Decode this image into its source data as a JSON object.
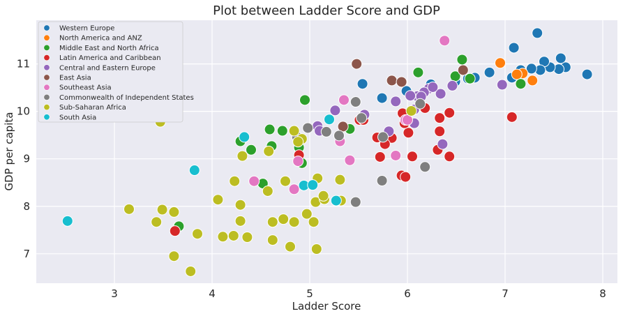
{
  "chart_data": {
    "type": "scatter",
    "title": "Plot between Ladder Score and GDP",
    "xlabel": "Ladder Score",
    "ylabel": "GDP per capita",
    "xlim": [
      2.2,
      8.15
    ],
    "ylim": [
      6.38,
      11.92
    ],
    "xticks": [
      3,
      4,
      5,
      6,
      7,
      8
    ],
    "yticks": [
      7,
      8,
      9,
      10,
      11
    ],
    "grid": true,
    "legend_position": "top-left",
    "series": [
      {
        "name": "Western Europe",
        "color": "#1f77b4",
        "points": [
          [
            7.84,
            10.78
          ],
          [
            7.62,
            10.93
          ],
          [
            7.57,
            11.12
          ],
          [
            7.55,
            10.89
          ],
          [
            7.46,
            10.93
          ],
          [
            7.4,
            11.05
          ],
          [
            7.36,
            10.87
          ],
          [
            7.33,
            11.65
          ],
          [
            7.27,
            10.9
          ],
          [
            7.16,
            10.87
          ],
          [
            7.09,
            11.34
          ],
          [
            7.07,
            10.71
          ],
          [
            6.84,
            10.82
          ],
          [
            6.69,
            10.71
          ],
          [
            6.62,
            10.69
          ],
          [
            6.49,
            10.63
          ],
          [
            6.24,
            10.57
          ],
          [
            5.99,
            10.43
          ],
          [
            5.74,
            10.28
          ],
          [
            5.54,
            10.58
          ]
        ]
      },
      {
        "name": "North America and ANZ",
        "color": "#ff7f0e",
        "points": [
          [
            7.28,
            10.65
          ],
          [
            7.18,
            10.8
          ],
          [
            7.12,
            10.78
          ],
          [
            6.95,
            11.02
          ]
        ]
      },
      {
        "name": "Middle East and North Africa",
        "color": "#2ca02c",
        "points": [
          [
            7.16,
            10.58
          ],
          [
            6.56,
            11.09
          ],
          [
            6.49,
            10.74
          ],
          [
            6.64,
            10.69
          ],
          [
            6.11,
            10.82
          ],
          [
            4.95,
            10.24
          ],
          [
            5.41,
            9.63
          ],
          [
            4.59,
            9.62
          ],
          [
            4.72,
            9.59
          ],
          [
            4.89,
            9.24
          ],
          [
            4.92,
            8.91
          ],
          [
            4.61,
            9.27
          ],
          [
            4.4,
            9.19
          ],
          [
            4.29,
            9.37
          ],
          [
            4.52,
            8.48
          ],
          [
            3.66,
            7.58
          ]
        ]
      },
      {
        "name": "Latin America and Caribbean",
        "color": "#d62728",
        "points": [
          [
            7.07,
            9.88
          ],
          [
            6.43,
            9.97
          ],
          [
            6.33,
            9.86
          ],
          [
            6.18,
            10.07
          ],
          [
            6.33,
            9.58
          ],
          [
            6.01,
            9.55
          ],
          [
            5.95,
            9.96
          ],
          [
            5.97,
            9.75
          ],
          [
            5.84,
            9.44
          ],
          [
            5.77,
            9.31
          ],
          [
            5.69,
            9.45
          ],
          [
            5.51,
            9.82
          ],
          [
            5.72,
            9.04
          ],
          [
            6.05,
            9.05
          ],
          [
            6.31,
            9.19
          ],
          [
            6.43,
            9.05
          ],
          [
            5.94,
            8.65
          ],
          [
            5.98,
            8.62
          ],
          [
            4.89,
            9.08
          ],
          [
            3.62,
            7.48
          ],
          [
            5.55,
            9.82
          ]
        ]
      },
      {
        "name": "Central and Eastern Europe",
        "color": "#9467bd",
        "points": [
          [
            6.97,
            10.56
          ],
          [
            6.46,
            10.54
          ],
          [
            6.34,
            10.37
          ],
          [
            6.22,
            10.48
          ],
          [
            6.17,
            10.4
          ],
          [
            6.1,
            10.32
          ],
          [
            6.03,
            10.33
          ],
          [
            5.88,
            10.21
          ],
          [
            6.14,
            10.31
          ],
          [
            6.26,
            10.51
          ],
          [
            6.07,
            10.04
          ],
          [
            5.56,
            9.93
          ],
          [
            5.81,
            9.58
          ],
          [
            6.07,
            9.75
          ],
          [
            6.36,
            9.31
          ],
          [
            5.08,
            9.69
          ],
          [
            5.1,
            9.59
          ],
          [
            5.26,
            10.02
          ]
        ]
      },
      {
        "name": "East Asia",
        "color": "#8c564b",
        "points": [
          [
            5.48,
            11.0
          ],
          [
            5.84,
            10.65
          ],
          [
            5.94,
            10.62
          ],
          [
            6.57,
            10.87
          ],
          [
            5.34,
            9.68
          ]
        ]
      },
      {
        "name": "Southeast Asia",
        "color": "#e377c2",
        "points": [
          [
            6.38,
            11.49
          ],
          [
            5.35,
            10.24
          ],
          [
            5.88,
            9.07
          ],
          [
            5.41,
            8.97
          ],
          [
            4.84,
            8.36
          ],
          [
            4.43,
            8.53
          ],
          [
            4.88,
            8.95
          ],
          [
            5.31,
            9.37
          ],
          [
            5.98,
            9.82
          ],
          [
            6.0,
            9.82
          ]
        ]
      },
      {
        "name": "Commonwealth of Independent States",
        "color": "#7f7f7f",
        "points": [
          [
            6.18,
            8.83
          ],
          [
            5.74,
            8.54
          ],
          [
            6.13,
            10.16
          ],
          [
            5.53,
            9.86
          ],
          [
            5.47,
            10.2
          ],
          [
            5.75,
            9.46
          ],
          [
            4.98,
            9.65
          ],
          [
            5.3,
            9.49
          ],
          [
            5.17,
            9.57
          ],
          [
            4.87,
            9.46
          ],
          [
            5.47,
            8.09
          ]
        ]
      },
      {
        "name": "Sub-Saharan Africa",
        "color": "#bcbd22",
        "points": [
          [
            3.47,
            9.78
          ],
          [
            4.84,
            9.59
          ],
          [
            4.58,
            9.16
          ],
          [
            4.92,
            9.42
          ],
          [
            4.88,
            9.36
          ],
          [
            4.31,
            9.06
          ],
          [
            6.04,
            10.01
          ],
          [
            4.23,
            8.53
          ],
          [
            4.75,
            8.53
          ],
          [
            5.08,
            8.59
          ],
          [
            5.31,
            8.56
          ],
          [
            4.57,
            8.32
          ],
          [
            4.06,
            8.14
          ],
          [
            3.15,
            7.94
          ],
          [
            3.49,
            7.93
          ],
          [
            3.61,
            7.88
          ],
          [
            4.29,
            8.03
          ],
          [
            5.06,
            8.09
          ],
          [
            5.15,
            8.15
          ],
          [
            5.14,
            8.22
          ],
          [
            5.32,
            8.12
          ],
          [
            4.97,
            7.84
          ],
          [
            3.43,
            7.67
          ],
          [
            3.85,
            7.42
          ],
          [
            4.11,
            7.36
          ],
          [
            4.22,
            7.38
          ],
          [
            4.36,
            7.35
          ],
          [
            4.62,
            7.29
          ],
          [
            4.62,
            7.67
          ],
          [
            4.73,
            7.73
          ],
          [
            4.84,
            7.67
          ],
          [
            5.04,
            7.67
          ],
          [
            4.29,
            7.69
          ],
          [
            4.8,
            7.15
          ],
          [
            3.61,
            6.95
          ],
          [
            3.78,
            6.63
          ],
          [
            5.07,
            7.1
          ]
        ]
      },
      {
        "name": "South Asia",
        "color": "#17becf",
        "points": [
          [
            2.52,
            7.69
          ],
          [
            3.82,
            8.76
          ],
          [
            4.33,
            9.46
          ],
          [
            5.2,
            9.83
          ],
          [
            4.94,
            8.44
          ],
          [
            5.03,
            8.45
          ],
          [
            5.27,
            8.12
          ]
        ]
      }
    ]
  }
}
